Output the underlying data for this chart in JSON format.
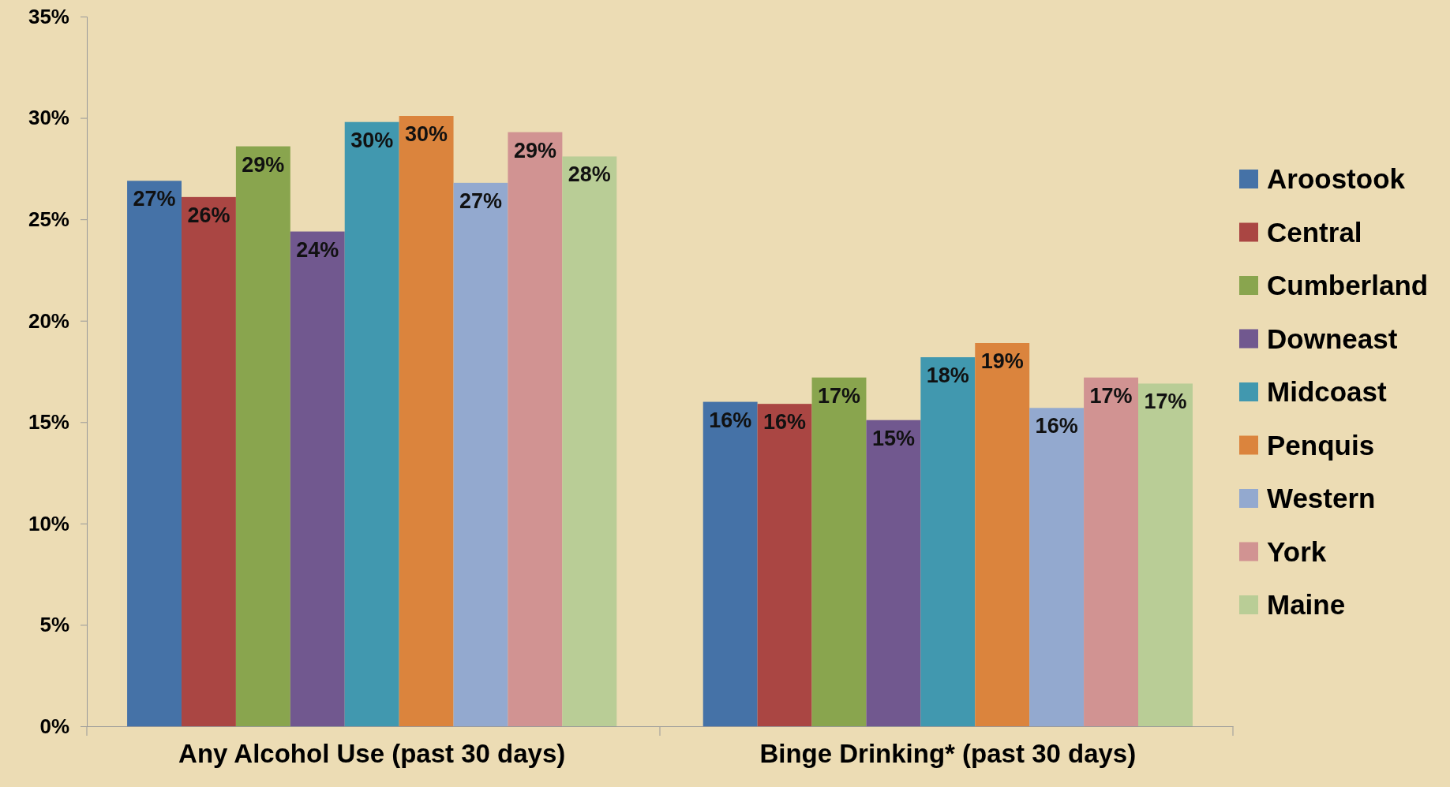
{
  "chart_data": {
    "type": "bar",
    "categories": [
      "Any Alcohol Use (past 30 days)",
      "Binge Drinking* (past 30 days)"
    ],
    "series": [
      {
        "name": "Aroostook",
        "color": "#4572a7",
        "values": [
          26.9,
          16.0
        ],
        "value_labels": [
          "27%",
          "16%"
        ]
      },
      {
        "name": "Central",
        "color": "#aa4643",
        "values": [
          26.1,
          15.9
        ],
        "value_labels": [
          "26%",
          "16%"
        ]
      },
      {
        "name": "Cumberland",
        "color": "#89a54e",
        "values": [
          28.6,
          17.2
        ],
        "value_labels": [
          "29%",
          "17%"
        ]
      },
      {
        "name": "Downeast",
        "color": "#71588f",
        "values": [
          24.4,
          15.1
        ],
        "value_labels": [
          "24%",
          "15%"
        ]
      },
      {
        "name": "Midcoast",
        "color": "#4198af",
        "values": [
          29.8,
          18.2
        ],
        "value_labels": [
          "30%",
          "18%"
        ]
      },
      {
        "name": "Penquis",
        "color": "#db843d",
        "values": [
          30.1,
          18.9
        ],
        "value_labels": [
          "30%",
          "19%"
        ]
      },
      {
        "name": "Western",
        "color": "#93a9cf",
        "values": [
          26.8,
          15.7
        ],
        "value_labels": [
          "27%",
          "16%"
        ]
      },
      {
        "name": "York",
        "color": "#d19392",
        "values": [
          29.3,
          17.2
        ],
        "value_labels": [
          "29%",
          "17%"
        ]
      },
      {
        "name": "Maine",
        "color": "#b9cd96",
        "values": [
          28.1,
          16.9
        ],
        "value_labels": [
          "28%",
          "17%"
        ]
      }
    ],
    "ylim": [
      0,
      35
    ],
    "yticks": [
      {
        "value": 0,
        "label": "0%"
      },
      {
        "value": 5,
        "label": "5%"
      },
      {
        "value": 10,
        "label": "10%"
      },
      {
        "value": 15,
        "label": "15%"
      },
      {
        "value": 20,
        "label": "20%"
      },
      {
        "value": 25,
        "label": "25%"
      },
      {
        "value": 30,
        "label": "30%"
      },
      {
        "value": 35,
        "label": "35%"
      }
    ],
    "legend": "right",
    "grid": false
  }
}
